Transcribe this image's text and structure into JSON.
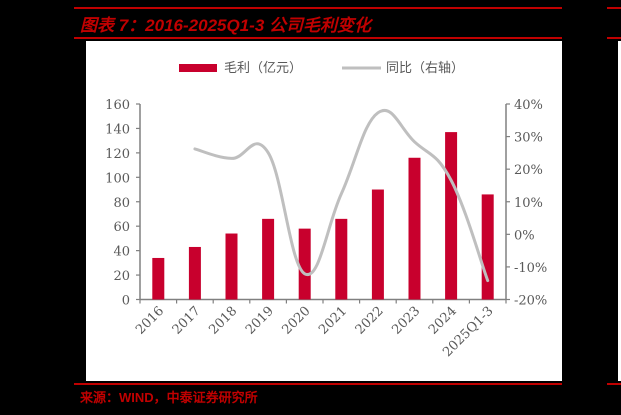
{
  "header": {
    "title": "图表 7：2016-2025Q1-3 公司毛利变化"
  },
  "footer": {
    "source": "来源：WIND，中泰证券研究所"
  },
  "colors": {
    "accent": "#C00000",
    "bar": "#C8002D",
    "line": "#BFBFBF",
    "axis": "#808080",
    "tick_text": "#595959"
  },
  "chart_data": {
    "type": "bar",
    "title": "2016-2025Q1-3 公司毛利变化",
    "categories": [
      "2016",
      "2017",
      "2018",
      "2019",
      "2020",
      "2021",
      "2022",
      "2023",
      "2024",
      "2025Q1-3"
    ],
    "series": [
      {
        "name": "毛利（亿元）",
        "type": "bar",
        "axis": "left",
        "values": [
          34,
          43,
          54,
          66,
          58,
          66,
          90,
          116,
          137,
          86
        ]
      },
      {
        "name": "同比（右轴）",
        "type": "line",
        "axis": "right",
        "unit": "%",
        "values": [
          null,
          26.2,
          23.3,
          25.1,
          -12.1,
          12.4,
          37.3,
          28.4,
          16.6,
          -14.2
        ]
      }
    ],
    "legend": [
      "毛利（亿元）",
      "同比（右轴）"
    ],
    "legend_position": "top",
    "xlabel": "",
    "ylabel": "",
    "ylim": [
      0,
      160
    ],
    "yticks": [
      0,
      20,
      40,
      60,
      80,
      100,
      120,
      140,
      160
    ],
    "y2lim": [
      -20,
      40
    ],
    "y2ticks": [
      "-20%",
      "-10%",
      "0%",
      "10%",
      "20%",
      "30%",
      "40%"
    ],
    "grid": false
  }
}
